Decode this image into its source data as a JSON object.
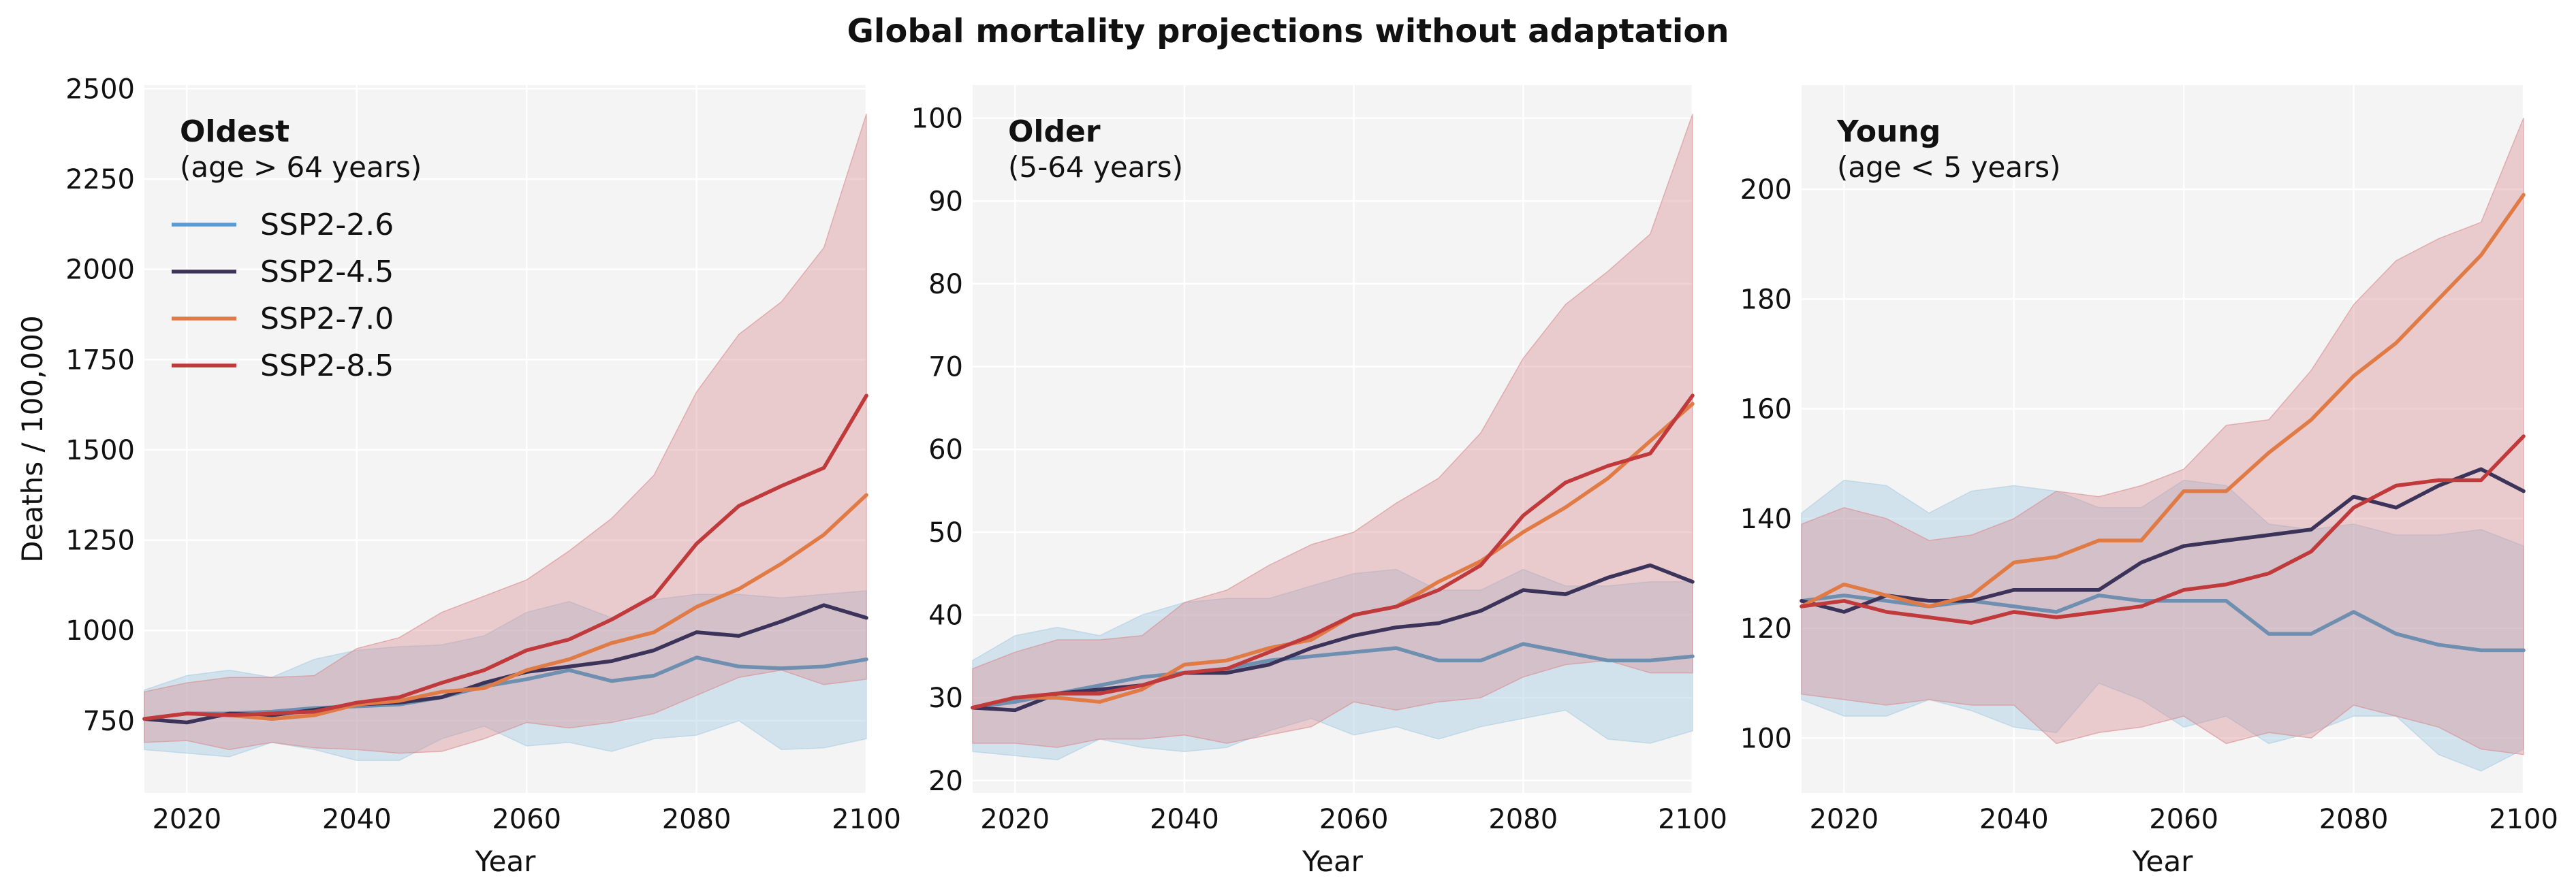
{
  "title": "Global mortality projections without adaptation",
  "colors": {
    "SSP2-2.6": "#5b9bd5",
    "SSP2-4.5": "#3b3359",
    "SSP2-7.0": "#e07b46",
    "SSP2-8.5": "#c0393b",
    "band_low": "#a9cde3",
    "band_high": "#d88a8e",
    "panel_bg": "#f4f4f4",
    "grid": "#ffffff"
  },
  "chart_data": [
    {
      "type": "line",
      "panel_title": "Oldest",
      "panel_subtitle": "(age > 64 years)",
      "xlabel": "Year",
      "ylabel": "Deaths / 100,000",
      "xlim": [
        2015,
        2100
      ],
      "ylim": [
        550,
        2510
      ],
      "xticks": [
        2020,
        2040,
        2060,
        2080,
        2100
      ],
      "yticks": [
        750,
        1000,
        1250,
        1500,
        1750,
        2000,
        2250,
        2500
      ],
      "grid": true,
      "legend": "top-left",
      "x": [
        2015,
        2020,
        2025,
        2030,
        2035,
        2040,
        2045,
        2050,
        2055,
        2060,
        2065,
        2070,
        2075,
        2080,
        2085,
        2090,
        2095,
        2100
      ],
      "series": [
        {
          "name": "SSP2-2.6",
          "values": [
            755,
            770,
            770,
            775,
            785,
            790,
            795,
            815,
            845,
            865,
            890,
            860,
            875,
            925,
            900,
            895,
            900,
            920
          ]
        },
        {
          "name": "SSP2-4.5",
          "values": [
            755,
            745,
            770,
            765,
            780,
            795,
            800,
            815,
            855,
            885,
            900,
            915,
            945,
            995,
            985,
            1025,
            1070,
            1035
          ]
        },
        {
          "name": "SSP2-7.0",
          "values": [
            755,
            770,
            765,
            755,
            765,
            795,
            805,
            830,
            840,
            890,
            920,
            965,
            995,
            1065,
            1115,
            1185,
            1265,
            1375
          ]
        },
        {
          "name": "SSP2-8.5",
          "values": [
            755,
            770,
            765,
            770,
            775,
            800,
            815,
            855,
            890,
            945,
            975,
            1030,
            1095,
            1240,
            1345,
            1400,
            1450,
            1650
          ]
        }
      ],
      "bands": [
        {
          "name": "SSP2-2.6",
          "lower": [
            670,
            660,
            650,
            690,
            670,
            640,
            640,
            700,
            735,
            680,
            690,
            665,
            700,
            710,
            750,
            670,
            675,
            700
          ],
          "upper": [
            835,
            875,
            890,
            870,
            920,
            945,
            955,
            960,
            985,
            1050,
            1080,
            1035,
            1085,
            1100,
            1100,
            1090,
            1100,
            1110
          ]
        },
        {
          "name": "SSP2-8.5",
          "lower": [
            690,
            695,
            670,
            690,
            675,
            670,
            660,
            665,
            700,
            745,
            730,
            745,
            770,
            820,
            870,
            890,
            850,
            865
          ],
          "upper": [
            830,
            855,
            870,
            870,
            875,
            950,
            980,
            1050,
            1095,
            1140,
            1220,
            1310,
            1430,
            1660,
            1820,
            1910,
            2060,
            2430
          ]
        }
      ]
    },
    {
      "type": "line",
      "panel_title": "Older",
      "panel_subtitle": "(5-64 years)",
      "xlabel": "Year",
      "ylabel": "",
      "xlim": [
        2015,
        2100
      ],
      "ylim": [
        18.5,
        104
      ],
      "xticks": [
        2020,
        2040,
        2060,
        2080,
        2100
      ],
      "yticks": [
        20,
        30,
        40,
        50,
        60,
        70,
        80,
        90,
        100
      ],
      "grid": true,
      "x": [
        2015,
        2020,
        2025,
        2030,
        2035,
        2040,
        2045,
        2050,
        2055,
        2060,
        2065,
        2070,
        2075,
        2080,
        2085,
        2090,
        2095,
        2100
      ],
      "series": [
        {
          "name": "SSP2-2.6",
          "values": [
            28.8,
            29.5,
            30.5,
            31.5,
            32.5,
            33.0,
            33.5,
            34.5,
            35.0,
            35.5,
            36.0,
            34.5,
            34.5,
            36.5,
            35.5,
            34.5,
            34.5,
            35.0
          ]
        },
        {
          "name": "SSP2-4.5",
          "values": [
            28.8,
            28.5,
            30.5,
            31.0,
            31.5,
            33.0,
            33.0,
            34.0,
            36.0,
            37.5,
            38.5,
            39.0,
            40.5,
            43.0,
            42.5,
            44.5,
            46.0,
            44.0
          ]
        },
        {
          "name": "SSP2-7.0",
          "values": [
            28.8,
            30.0,
            30.0,
            29.5,
            31.0,
            34.0,
            34.5,
            36.0,
            37.0,
            40.0,
            41.0,
            44.0,
            46.5,
            50.0,
            53.0,
            56.5,
            61.0,
            65.5
          ]
        },
        {
          "name": "SSP2-8.5",
          "values": [
            28.8,
            30.0,
            30.5,
            30.5,
            31.5,
            33.0,
            33.5,
            35.5,
            37.5,
            40.0,
            41.0,
            43.0,
            46.0,
            52.0,
            56.0,
            58.0,
            59.5,
            66.5
          ]
        }
      ],
      "bands": [
        {
          "name": "SSP2-2.6",
          "lower": [
            23.5,
            23.0,
            22.5,
            25.0,
            24.0,
            23.5,
            24.0,
            26.0,
            27.5,
            25.5,
            26.5,
            25.0,
            26.5,
            27.5,
            28.5,
            25.0,
            24.5,
            26.0
          ],
          "upper": [
            34.5,
            37.5,
            38.5,
            37.5,
            40.0,
            41.5,
            42.0,
            42.0,
            43.5,
            45.0,
            45.5,
            43.0,
            43.0,
            45.5,
            43.5,
            43.5,
            44.0,
            44.0
          ]
        },
        {
          "name": "SSP2-8.5",
          "lower": [
            24.5,
            24.5,
            24.0,
            25.0,
            25.0,
            25.5,
            24.5,
            25.5,
            26.5,
            29.5,
            28.5,
            29.5,
            30.0,
            32.5,
            34.0,
            34.5,
            33.0,
            33.0
          ],
          "upper": [
            33.5,
            35.5,
            37.0,
            37.0,
            37.5,
            41.5,
            43.0,
            46.0,
            48.5,
            50.0,
            53.5,
            56.5,
            62.0,
            71.0,
            77.5,
            81.5,
            86.0,
            100.5
          ]
        }
      ]
    },
    {
      "type": "line",
      "panel_title": "Young",
      "panel_subtitle": "(age < 5 years)",
      "xlabel": "Year",
      "ylabel": "",
      "xlim": [
        2015,
        2100
      ],
      "ylim": [
        90,
        219
      ],
      "xticks": [
        2020,
        2040,
        2060,
        2080,
        2100
      ],
      "yticks": [
        100,
        120,
        140,
        160,
        180,
        200
      ],
      "grid": true,
      "x": [
        2015,
        2020,
        2025,
        2030,
        2035,
        2040,
        2045,
        2050,
        2055,
        2060,
        2065,
        2070,
        2075,
        2080,
        2085,
        2090,
        2095,
        2100
      ],
      "series": [
        {
          "name": "SSP2-2.6",
          "values": [
            125,
            126,
            125,
            124,
            125,
            124,
            123,
            126,
            125,
            125,
            125,
            119,
            119,
            123,
            119,
            117,
            116,
            116
          ]
        },
        {
          "name": "SSP2-4.5",
          "values": [
            125,
            123,
            126,
            125,
            125,
            127,
            127,
            127,
            132,
            135,
            136,
            137,
            138,
            144,
            142,
            146,
            149,
            145
          ]
        },
        {
          "name": "SSP2-7.0",
          "values": [
            124,
            128,
            126,
            124,
            126,
            132,
            133,
            136,
            136,
            145,
            145,
            152,
            158,
            166,
            172,
            180,
            188,
            199
          ]
        },
        {
          "name": "SSP2-8.5",
          "values": [
            124,
            125,
            123,
            122,
            121,
            123,
            122,
            123,
            124,
            127,
            128,
            130,
            134,
            142,
            146,
            147,
            147,
            155
          ]
        }
      ],
      "bands": [
        {
          "name": "SSP2-2.6",
          "lower": [
            107,
            104,
            104,
            107,
            105,
            102,
            101,
            110,
            107,
            102,
            104,
            99,
            101,
            104,
            104,
            97,
            94,
            98
          ],
          "upper": [
            141,
            147,
            146,
            141,
            145,
            146,
            145,
            142,
            142,
            147,
            146,
            139,
            138,
            139,
            137,
            137,
            138,
            135
          ]
        },
        {
          "name": "SSP2-8.5",
          "lower": [
            108,
            107,
            106,
            107,
            106,
            106,
            99,
            101,
            102,
            104,
            99,
            101,
            100,
            106,
            104,
            102,
            98,
            97
          ],
          "upper": [
            139,
            142,
            140,
            136,
            137,
            140,
            145,
            144,
            146,
            149,
            157,
            158,
            167,
            179,
            187,
            191,
            194,
            213
          ]
        }
      ]
    }
  ]
}
